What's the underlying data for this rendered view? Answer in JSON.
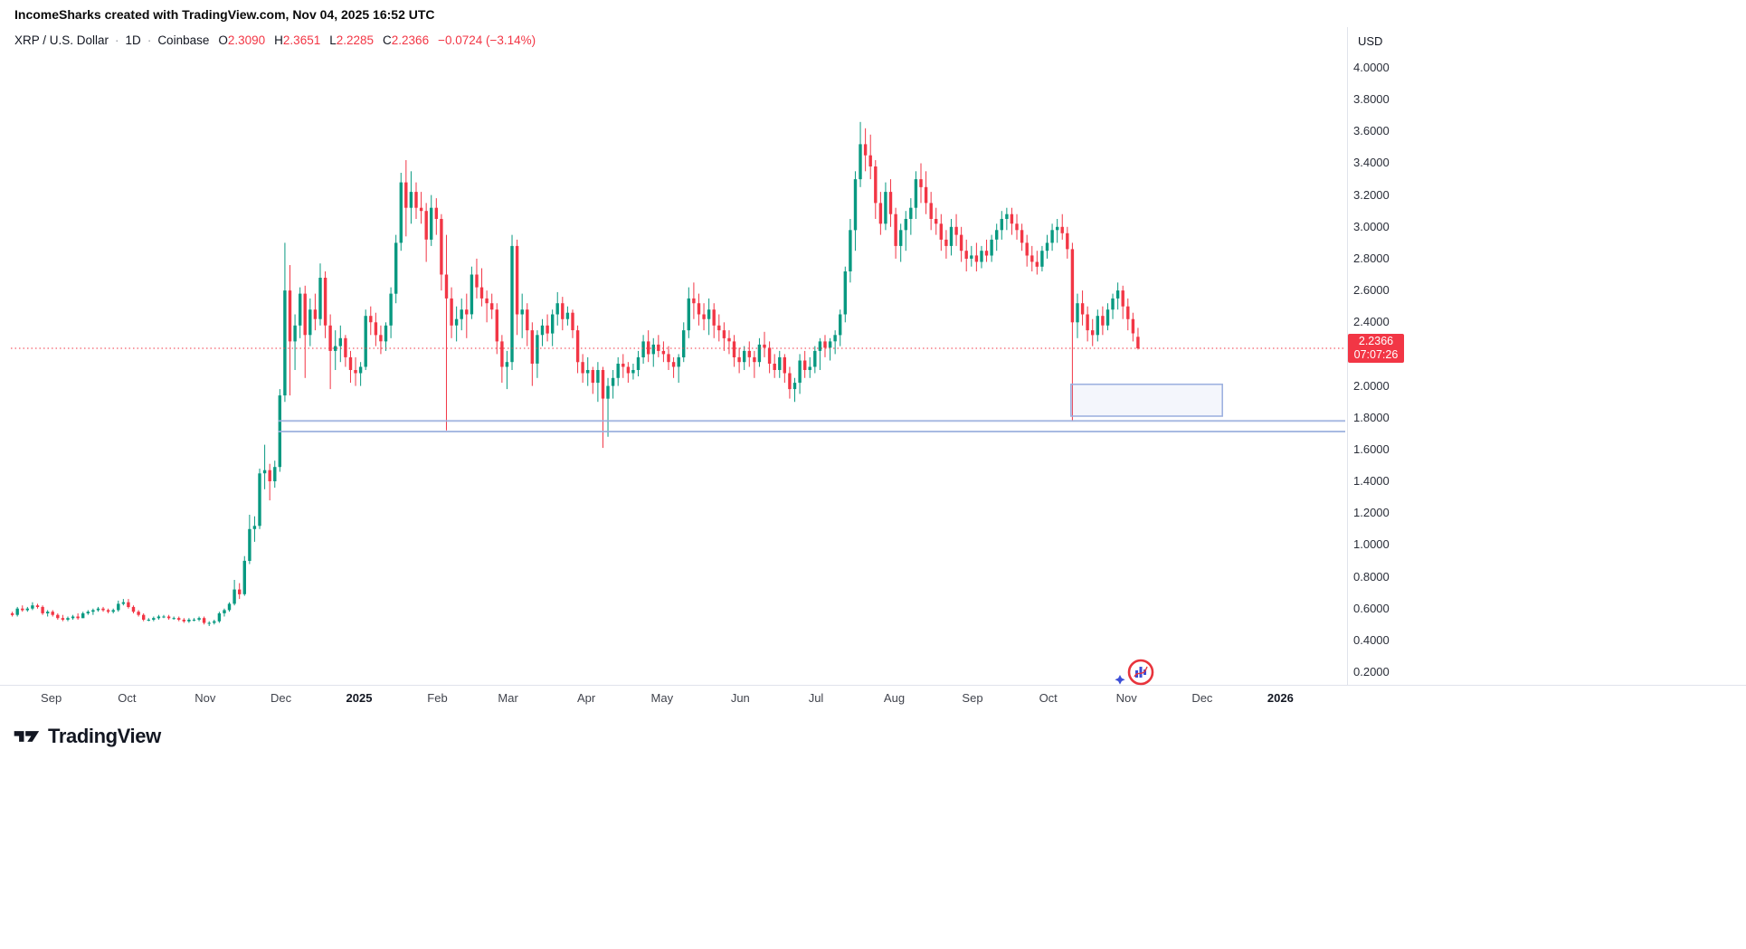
{
  "meta": {
    "attribution": "IncomeSharks created with TradingView.com, Nov 04, 2025 16:52 UTC"
  },
  "header": {
    "symbol": "XRP / U.S. Dollar",
    "separator": "·",
    "interval": "1D",
    "exchange": "Coinbase",
    "ohlc": {
      "o_label": "O",
      "o": "2.3090",
      "h_label": "H",
      "h": "2.3651",
      "l_label": "L",
      "l": "2.2285",
      "c_label": "C",
      "c": "2.2366",
      "change": "−0.0724 (−3.14%)"
    }
  },
  "price_scale": {
    "currency": "USD",
    "labels": [
      "4.0000",
      "3.8000",
      "3.6000",
      "3.4000",
      "3.2000",
      "3.0000",
      "2.8000",
      "2.6000",
      "2.4000",
      "2.0000",
      "1.8000",
      "1.6000",
      "1.4000",
      "1.2000",
      "1.0000",
      "0.8000",
      "0.6000",
      "0.4000",
      "0.2000"
    ],
    "current_price": "2.2366",
    "current_price_value": 2.2366,
    "countdown": "07:07:26"
  },
  "footer": {
    "brand": "TradingView"
  },
  "icons": {
    "footer_logo": "tradingview-mark",
    "watermark_logo": "incomesharks-badge",
    "watermark_star": "sparkle-star"
  },
  "colors": {
    "up": "#089981",
    "down": "#f23645",
    "drawing": "#9aaede",
    "drawing_fill": "rgba(152,170,224,0.10)",
    "badge_bg": "#f23645",
    "text": "#131722"
  },
  "chart_data": {
    "type": "candlestick",
    "title": "XRP / U.S. Dollar, 1D, Coinbase",
    "ylim": [
      0.12,
      4.27
    ],
    "grid": false,
    "candle_interval_days": 2,
    "x_range_label": "Aug 2024 – Nov 2025",
    "time_ticks": [
      {
        "label": "Sep",
        "day": 16
      },
      {
        "label": "Oct",
        "day": 46
      },
      {
        "label": "Nov",
        "day": 77
      },
      {
        "label": "Dec",
        "day": 107
      },
      {
        "label": "2025",
        "day": 138,
        "bold": true
      },
      {
        "label": "Feb",
        "day": 169
      },
      {
        "label": "Mar",
        "day": 197
      },
      {
        "label": "Apr",
        "day": 228
      },
      {
        "label": "May",
        "day": 258
      },
      {
        "label": "Jun",
        "day": 289
      },
      {
        "label": "Jul",
        "day": 319
      },
      {
        "label": "Aug",
        "day": 350
      },
      {
        "label": "Sep",
        "day": 381
      },
      {
        "label": "Oct",
        "day": 411
      },
      {
        "label": "Nov",
        "day": 442
      },
      {
        "label": "Dec",
        "day": 472
      },
      {
        "label": "2026",
        "day": 503,
        "bold": true
      }
    ],
    "candles": [
      [
        0.57,
        0.58,
        0.55,
        0.56
      ],
      [
        0.56,
        0.61,
        0.55,
        0.6
      ],
      [
        0.6,
        0.62,
        0.58,
        0.59
      ],
      [
        0.59,
        0.61,
        0.58,
        0.6
      ],
      [
        0.6,
        0.64,
        0.59,
        0.62
      ],
      [
        0.62,
        0.63,
        0.6,
        0.61
      ],
      [
        0.61,
        0.62,
        0.56,
        0.57
      ],
      [
        0.57,
        0.59,
        0.55,
        0.58
      ],
      [
        0.58,
        0.59,
        0.55,
        0.56
      ],
      [
        0.56,
        0.57,
        0.53,
        0.54
      ],
      [
        0.54,
        0.56,
        0.52,
        0.53
      ],
      [
        0.53,
        0.55,
        0.52,
        0.54
      ],
      [
        0.54,
        0.56,
        0.53,
        0.55
      ],
      [
        0.55,
        0.57,
        0.53,
        0.54
      ],
      [
        0.54,
        0.58,
        0.54,
        0.57
      ],
      [
        0.57,
        0.59,
        0.56,
        0.58
      ],
      [
        0.58,
        0.6,
        0.56,
        0.59
      ],
      [
        0.59,
        0.61,
        0.58,
        0.6
      ],
      [
        0.6,
        0.61,
        0.58,
        0.59
      ],
      [
        0.59,
        0.6,
        0.57,
        0.58
      ],
      [
        0.58,
        0.6,
        0.57,
        0.59
      ],
      [
        0.59,
        0.65,
        0.58,
        0.63
      ],
      [
        0.63,
        0.66,
        0.62,
        0.64
      ],
      [
        0.64,
        0.66,
        0.6,
        0.61
      ],
      [
        0.61,
        0.62,
        0.57,
        0.58
      ],
      [
        0.58,
        0.59,
        0.55,
        0.56
      ],
      [
        0.56,
        0.57,
        0.52,
        0.53
      ],
      [
        0.53,
        0.54,
        0.52,
        0.53
      ],
      [
        0.53,
        0.55,
        0.52,
        0.54
      ],
      [
        0.54,
        0.56,
        0.53,
        0.55
      ],
      [
        0.55,
        0.56,
        0.54,
        0.55
      ],
      [
        0.55,
        0.56,
        0.53,
        0.54
      ],
      [
        0.54,
        0.55,
        0.53,
        0.54
      ],
      [
        0.54,
        0.55,
        0.52,
        0.53
      ],
      [
        0.53,
        0.54,
        0.51,
        0.52
      ],
      [
        0.52,
        0.54,
        0.51,
        0.53
      ],
      [
        0.53,
        0.54,
        0.52,
        0.53
      ],
      [
        0.53,
        0.55,
        0.52,
        0.54
      ],
      [
        0.54,
        0.55,
        0.5,
        0.51
      ],
      [
        0.51,
        0.52,
        0.49,
        0.51
      ],
      [
        0.51,
        0.53,
        0.5,
        0.52
      ],
      [
        0.52,
        0.58,
        0.51,
        0.57
      ],
      [
        0.57,
        0.6,
        0.55,
        0.59
      ],
      [
        0.59,
        0.64,
        0.58,
        0.63
      ],
      [
        0.63,
        0.78,
        0.62,
        0.72
      ],
      [
        0.72,
        0.76,
        0.66,
        0.69
      ],
      [
        0.69,
        0.93,
        0.68,
        0.9
      ],
      [
        0.9,
        1.19,
        0.88,
        1.1
      ],
      [
        1.1,
        1.18,
        1.02,
        1.12
      ],
      [
        1.12,
        1.48,
        1.1,
        1.45
      ],
      [
        1.45,
        1.63,
        1.35,
        1.47
      ],
      [
        1.47,
        1.51,
        1.28,
        1.4
      ],
      [
        1.4,
        1.53,
        1.36,
        1.49
      ],
      [
        1.49,
        1.98,
        1.46,
        1.94
      ],
      [
        1.94,
        2.9,
        1.9,
        2.6
      ],
      [
        2.6,
        2.76,
        1.94,
        2.28
      ],
      [
        2.28,
        2.45,
        2.1,
        2.38
      ],
      [
        2.38,
        2.62,
        2.3,
        2.58
      ],
      [
        2.58,
        2.63,
        2.05,
        2.32
      ],
      [
        2.32,
        2.55,
        2.25,
        2.48
      ],
      [
        2.48,
        2.58,
        2.35,
        2.42
      ],
      [
        2.42,
        2.77,
        2.38,
        2.68
      ],
      [
        2.68,
        2.72,
        2.3,
        2.38
      ],
      [
        2.38,
        2.45,
        1.98,
        2.22
      ],
      [
        2.22,
        2.35,
        2.1,
        2.25
      ],
      [
        2.25,
        2.38,
        2.15,
        2.3
      ],
      [
        2.3,
        2.32,
        2.12,
        2.18
      ],
      [
        2.18,
        2.22,
        2.02,
        2.1
      ],
      [
        2.1,
        2.18,
        2.0,
        2.08
      ],
      [
        2.08,
        2.15,
        2.0,
        2.12
      ],
      [
        2.12,
        2.48,
        2.1,
        2.44
      ],
      [
        2.44,
        2.5,
        2.32,
        2.4
      ],
      [
        2.4,
        2.46,
        2.25,
        2.32
      ],
      [
        2.32,
        2.38,
        2.2,
        2.28
      ],
      [
        2.28,
        2.4,
        2.22,
        2.38
      ],
      [
        2.38,
        2.62,
        2.3,
        2.58
      ],
      [
        2.58,
        2.95,
        2.52,
        2.9
      ],
      [
        2.9,
        3.34,
        2.85,
        3.28
      ],
      [
        3.28,
        3.42,
        2.94,
        3.12
      ],
      [
        3.12,
        3.35,
        3.02,
        3.22
      ],
      [
        3.22,
        3.28,
        3.05,
        3.12
      ],
      [
        3.12,
        3.22,
        3.02,
        3.1
      ],
      [
        3.1,
        3.15,
        2.78,
        2.92
      ],
      [
        2.92,
        3.2,
        2.88,
        3.12
      ],
      [
        3.12,
        3.18,
        2.95,
        3.05
      ],
      [
        3.05,
        3.08,
        2.6,
        2.7
      ],
      [
        2.7,
        2.95,
        1.72,
        2.55
      ],
      [
        2.55,
        2.62,
        2.3,
        2.38
      ],
      [
        2.38,
        2.5,
        2.28,
        2.42
      ],
      [
        2.42,
        2.55,
        2.35,
        2.48
      ],
      [
        2.48,
        2.58,
        2.3,
        2.45
      ],
      [
        2.45,
        2.75,
        2.42,
        2.7
      ],
      [
        2.7,
        2.8,
        2.55,
        2.62
      ],
      [
        2.62,
        2.74,
        2.5,
        2.55
      ],
      [
        2.55,
        2.6,
        2.4,
        2.52
      ],
      [
        2.52,
        2.58,
        2.42,
        2.48
      ],
      [
        2.48,
        2.52,
        2.2,
        2.28
      ],
      [
        2.28,
        2.32,
        2.02,
        2.12
      ],
      [
        2.12,
        2.22,
        1.98,
        2.15
      ],
      [
        2.15,
        2.95,
        2.1,
        2.88
      ],
      [
        2.88,
        2.92,
        2.32,
        2.45
      ],
      [
        2.45,
        2.58,
        2.3,
        2.48
      ],
      [
        2.48,
        2.52,
        2.25,
        2.35
      ],
      [
        2.35,
        2.4,
        2.0,
        2.14
      ],
      [
        2.14,
        2.35,
        2.05,
        2.32
      ],
      [
        2.32,
        2.42,
        2.25,
        2.38
      ],
      [
        2.38,
        2.45,
        2.28,
        2.33
      ],
      [
        2.33,
        2.48,
        2.25,
        2.45
      ],
      [
        2.45,
        2.59,
        2.38,
        2.52
      ],
      [
        2.52,
        2.56,
        2.35,
        2.42
      ],
      [
        2.42,
        2.5,
        2.38,
        2.46
      ],
      [
        2.46,
        2.48,
        2.3,
        2.35
      ],
      [
        2.35,
        2.38,
        2.08,
        2.15
      ],
      [
        2.15,
        2.2,
        2.02,
        2.08
      ],
      [
        2.08,
        2.18,
        2.0,
        2.1
      ],
      [
        2.1,
        2.12,
        1.95,
        2.02
      ],
      [
        2.02,
        2.15,
        1.9,
        2.1
      ],
      [
        2.1,
        2.12,
        1.61,
        1.92
      ],
      [
        1.92,
        2.05,
        1.68,
        2.0
      ],
      [
        2.0,
        2.1,
        1.92,
        2.05
      ],
      [
        2.05,
        2.18,
        2.0,
        2.14
      ],
      [
        2.14,
        2.2,
        2.05,
        2.12
      ],
      [
        2.12,
        2.15,
        2.02,
        2.08
      ],
      [
        2.08,
        2.14,
        2.04,
        2.1
      ],
      [
        2.1,
        2.22,
        2.06,
        2.18
      ],
      [
        2.18,
        2.32,
        2.14,
        2.28
      ],
      [
        2.28,
        2.35,
        2.15,
        2.2
      ],
      [
        2.2,
        2.3,
        2.12,
        2.26
      ],
      [
        2.26,
        2.32,
        2.18,
        2.22
      ],
      [
        2.22,
        2.28,
        2.15,
        2.2
      ],
      [
        2.2,
        2.25,
        2.1,
        2.15
      ],
      [
        2.15,
        2.18,
        2.05,
        2.12
      ],
      [
        2.12,
        2.2,
        2.02,
        2.18
      ],
      [
        2.18,
        2.4,
        2.15,
        2.35
      ],
      [
        2.35,
        2.62,
        2.3,
        2.55
      ],
      [
        2.55,
        2.65,
        2.42,
        2.52
      ],
      [
        2.52,
        2.58,
        2.38,
        2.45
      ],
      [
        2.45,
        2.52,
        2.35,
        2.42
      ],
      [
        2.42,
        2.55,
        2.32,
        2.48
      ],
      [
        2.48,
        2.52,
        2.3,
        2.38
      ],
      [
        2.38,
        2.45,
        2.28,
        2.35
      ],
      [
        2.35,
        2.4,
        2.22,
        2.3
      ],
      [
        2.3,
        2.35,
        2.2,
        2.28
      ],
      [
        2.28,
        2.32,
        2.12,
        2.18
      ],
      [
        2.18,
        2.24,
        2.08,
        2.15
      ],
      [
        2.15,
        2.25,
        2.1,
        2.22
      ],
      [
        2.22,
        2.28,
        2.12,
        2.18
      ],
      [
        2.18,
        2.22,
        2.05,
        2.15
      ],
      [
        2.15,
        2.3,
        2.12,
        2.26
      ],
      [
        2.26,
        2.34,
        2.18,
        2.24
      ],
      [
        2.24,
        2.28,
        2.08,
        2.14
      ],
      [
        2.14,
        2.2,
        2.05,
        2.1
      ],
      [
        2.1,
        2.22,
        2.05,
        2.18
      ],
      [
        2.18,
        2.2,
        2.02,
        2.08
      ],
      [
        2.08,
        2.12,
        1.92,
        1.98
      ],
      [
        1.98,
        2.05,
        1.9,
        2.02
      ],
      [
        2.02,
        2.2,
        1.95,
        2.16
      ],
      [
        2.16,
        2.22,
        2.05,
        2.1
      ],
      [
        2.1,
        2.18,
        2.05,
        2.12
      ],
      [
        2.12,
        2.25,
        2.08,
        2.22
      ],
      [
        2.22,
        2.3,
        2.1,
        2.28
      ],
      [
        2.28,
        2.32,
        2.18,
        2.24
      ],
      [
        2.24,
        2.3,
        2.16,
        2.28
      ],
      [
        2.28,
        2.35,
        2.2,
        2.32
      ],
      [
        2.32,
        2.48,
        2.25,
        2.45
      ],
      [
        2.45,
        2.75,
        2.4,
        2.72
      ],
      [
        2.72,
        3.05,
        2.65,
        2.98
      ],
      [
        2.98,
        3.35,
        2.85,
        3.3
      ],
      [
        3.3,
        3.66,
        3.25,
        3.52
      ],
      [
        3.52,
        3.62,
        3.35,
        3.45
      ],
      [
        3.45,
        3.58,
        3.3,
        3.38
      ],
      [
        3.38,
        3.42,
        3.05,
        3.15
      ],
      [
        3.15,
        3.22,
        2.95,
        3.02
      ],
      [
        3.02,
        3.28,
        2.98,
        3.22
      ],
      [
        3.22,
        3.3,
        3.0,
        3.08
      ],
      [
        3.08,
        3.12,
        2.8,
        2.88
      ],
      [
        2.88,
        3.02,
        2.78,
        2.98
      ],
      [
        2.98,
        3.1,
        2.85,
        3.05
      ],
      [
        3.05,
        3.18,
        2.95,
        3.12
      ],
      [
        3.12,
        3.35,
        3.05,
        3.3
      ],
      [
        3.3,
        3.4,
        3.15,
        3.25
      ],
      [
        3.25,
        3.35,
        3.08,
        3.15
      ],
      [
        3.15,
        3.22,
        2.98,
        3.05
      ],
      [
        3.05,
        3.12,
        2.95,
        3.02
      ],
      [
        3.02,
        3.08,
        2.85,
        2.92
      ],
      [
        2.92,
        2.98,
        2.8,
        2.88
      ],
      [
        2.88,
        3.05,
        2.82,
        3.0
      ],
      [
        3.0,
        3.08,
        2.88,
        2.95
      ],
      [
        2.95,
        3.0,
        2.78,
        2.85
      ],
      [
        2.85,
        2.92,
        2.72,
        2.8
      ],
      [
        2.8,
        2.88,
        2.75,
        2.82
      ],
      [
        2.82,
        2.9,
        2.72,
        2.78
      ],
      [
        2.78,
        2.88,
        2.74,
        2.85
      ],
      [
        2.85,
        2.92,
        2.78,
        2.82
      ],
      [
        2.82,
        2.95,
        2.78,
        2.92
      ],
      [
        2.92,
        3.02,
        2.85,
        2.98
      ],
      [
        2.98,
        3.1,
        2.92,
        3.05
      ],
      [
        3.05,
        3.12,
        2.98,
        3.08
      ],
      [
        3.08,
        3.12,
        2.95,
        3.02
      ],
      [
        3.02,
        3.08,
        2.92,
        2.98
      ],
      [
        2.98,
        3.02,
        2.85,
        2.9
      ],
      [
        2.9,
        2.95,
        2.75,
        2.82
      ],
      [
        2.82,
        2.88,
        2.72,
        2.78
      ],
      [
        2.78,
        2.85,
        2.7,
        2.75
      ],
      [
        2.75,
        2.88,
        2.72,
        2.85
      ],
      [
        2.85,
        2.95,
        2.8,
        2.9
      ],
      [
        2.9,
        3.02,
        2.85,
        2.98
      ],
      [
        2.98,
        3.05,
        2.9,
        3.0
      ],
      [
        3.0,
        3.08,
        2.92,
        2.96
      ],
      [
        2.96,
        3.0,
        2.8,
        2.86
      ],
      [
        2.86,
        2.9,
        1.78,
        2.4
      ],
      [
        2.4,
        2.58,
        2.3,
        2.52
      ],
      [
        2.52,
        2.6,
        2.38,
        2.45
      ],
      [
        2.45,
        2.5,
        2.28,
        2.35
      ],
      [
        2.35,
        2.42,
        2.25,
        2.32
      ],
      [
        2.32,
        2.48,
        2.28,
        2.44
      ],
      [
        2.44,
        2.5,
        2.32,
        2.38
      ],
      [
        2.38,
        2.52,
        2.35,
        2.48
      ],
      [
        2.48,
        2.58,
        2.42,
        2.55
      ],
      [
        2.55,
        2.65,
        2.48,
        2.6
      ],
      [
        2.6,
        2.63,
        2.42,
        2.5
      ],
      [
        2.5,
        2.55,
        2.35,
        2.42
      ],
      [
        2.42,
        2.46,
        2.28,
        2.33
      ],
      [
        2.309,
        2.3651,
        2.2285,
        2.2366
      ]
    ],
    "drawings": {
      "horizontal_lines": [
        {
          "price": 1.78,
          "start_day": 106
        },
        {
          "price": 1.713,
          "start_day": 106
        }
      ],
      "rectangle": {
        "start_day": 420,
        "end_day": 480,
        "price_top": 2.01,
        "price_bottom": 1.81
      },
      "current_price": 2.2366
    }
  }
}
